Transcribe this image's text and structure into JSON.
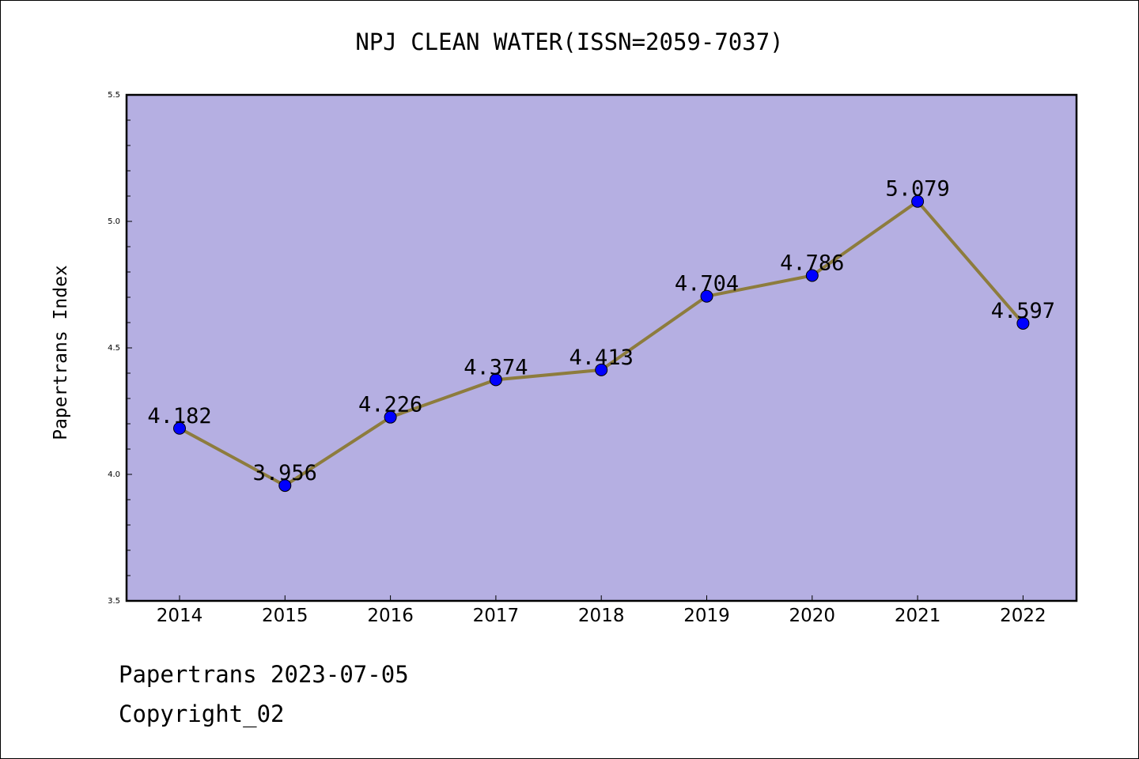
{
  "chart_data": {
    "type": "line",
    "title": "NPJ CLEAN WATER(ISSN=2059-7037)",
    "xlabel": "",
    "ylabel": "Papertrans Index",
    "categories": [
      "2014",
      "2015",
      "2016",
      "2017",
      "2018",
      "2019",
      "2020",
      "2021",
      "2022"
    ],
    "values": [
      4.182,
      3.956,
      4.226,
      4.374,
      4.413,
      4.704,
      4.786,
      5.079,
      4.597
    ],
    "data_labels": [
      "4.182",
      "3.956",
      "4.226",
      "4.374",
      "4.413",
      "4.704",
      "4.786",
      "5.079",
      "4.597"
    ],
    "ylim": [
      3.5,
      5.5
    ],
    "yticks": [
      "3.5",
      "4.0",
      "4.5",
      "5.0",
      "5.5"
    ],
    "grid": false,
    "legend": "none",
    "colors": {
      "plot_background": "#b5afe2",
      "line": "#8d7c3d",
      "marker": "#0000ff"
    }
  },
  "footer": {
    "date_text": "Papertrans 2023-07-05",
    "copyright_text": "Copyright_02"
  }
}
